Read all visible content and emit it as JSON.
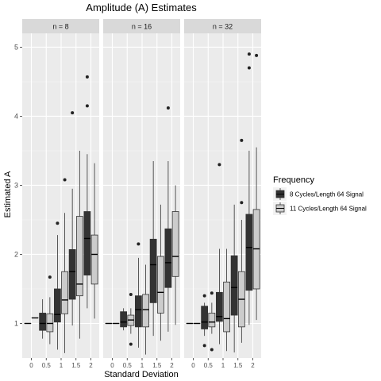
{
  "chart_data": {
    "type": "boxplot",
    "title": "Amplitude (A) Estimates",
    "xlabel": "Standard Deviation",
    "ylabel": "Estimated A",
    "ylim": [
      0.5,
      5.2
    ],
    "yticks": [
      "1",
      "2",
      "3",
      "4",
      "5"
    ],
    "categories": [
      "0",
      "0.5",
      "1",
      "1.5",
      "2"
    ],
    "legend": {
      "title": "Frequency",
      "position": "right",
      "items": [
        {
          "label": "8 Cycles/Length 64 Signal",
          "color": "#333333"
        },
        {
          "label": "11 Cycles/Length 64 Signal",
          "color": "#cccccc"
        }
      ]
    },
    "facets": [
      {
        "label": "n = 8",
        "boxes": [
          {
            "x": "0",
            "group": 0,
            "min": 1.0,
            "q1": 1.0,
            "median": 1.0,
            "q3": 1.0,
            "max": 1.0,
            "outliers": []
          },
          {
            "x": "0",
            "group": 1,
            "min": 1.08,
            "q1": 1.08,
            "median": 1.08,
            "q3": 1.08,
            "max": 1.08,
            "outliers": []
          },
          {
            "x": "0.5",
            "group": 0,
            "min": 0.78,
            "q1": 0.9,
            "median": 1.0,
            "q3": 1.15,
            "max": 1.35,
            "outliers": []
          },
          {
            "x": "0.5",
            "group": 1,
            "min": 0.7,
            "q1": 0.88,
            "median": 1.0,
            "q3": 1.14,
            "max": 1.38,
            "outliers": [
              1.67
            ]
          },
          {
            "x": "1",
            "group": 0,
            "min": 0.62,
            "q1": 1.02,
            "median": 1.13,
            "q3": 1.5,
            "max": 2.28,
            "outliers": [
              2.45
            ]
          },
          {
            "x": "1",
            "group": 1,
            "min": 0.57,
            "q1": 1.14,
            "median": 1.34,
            "q3": 1.75,
            "max": 2.6,
            "outliers": [
              3.08
            ]
          },
          {
            "x": "1.5",
            "group": 0,
            "min": 0.97,
            "q1": 1.35,
            "median": 1.75,
            "q3": 2.07,
            "max": 2.95,
            "outliers": [
              4.05
            ]
          },
          {
            "x": "1.5",
            "group": 1,
            "min": 0.78,
            "q1": 1.4,
            "median": 1.57,
            "q3": 2.55,
            "max": 3.5,
            "outliers": []
          },
          {
            "x": "2",
            "group": 0,
            "min": 1.22,
            "q1": 1.7,
            "median": 2.23,
            "q3": 2.62,
            "max": 3.45,
            "outliers": [
              4.15,
              4.57
            ]
          },
          {
            "x": "2",
            "group": 1,
            "min": 1.07,
            "q1": 1.57,
            "median": 2.0,
            "q3": 2.28,
            "max": 3.32,
            "outliers": []
          }
        ]
      },
      {
        "label": "n = 16",
        "boxes": [
          {
            "x": "0",
            "group": 0,
            "min": 1.0,
            "q1": 1.0,
            "median": 1.0,
            "q3": 1.0,
            "max": 1.0,
            "outliers": []
          },
          {
            "x": "0",
            "group": 1,
            "min": 1.0,
            "q1": 1.0,
            "median": 1.0,
            "q3": 1.0,
            "max": 1.0,
            "outliers": []
          },
          {
            "x": "0.5",
            "group": 0,
            "min": 0.9,
            "q1": 0.95,
            "median": 1.02,
            "q3": 1.17,
            "max": 1.22,
            "outliers": []
          },
          {
            "x": "0.5",
            "group": 1,
            "min": 0.85,
            "q1": 0.97,
            "median": 1.05,
            "q3": 1.12,
            "max": 1.22,
            "outliers": [
              1.42,
              0.7
            ]
          },
          {
            "x": "1",
            "group": 0,
            "min": 0.65,
            "q1": 0.95,
            "median": 1.2,
            "q3": 1.4,
            "max": 1.95,
            "outliers": [
              2.15
            ]
          },
          {
            "x": "1",
            "group": 1,
            "min": 0.55,
            "q1": 0.95,
            "median": 1.2,
            "q3": 1.42,
            "max": 1.85,
            "outliers": []
          },
          {
            "x": "1.5",
            "group": 0,
            "min": 0.82,
            "q1": 1.3,
            "median": 1.85,
            "q3": 2.22,
            "max": 3.35,
            "outliers": []
          },
          {
            "x": "1.5",
            "group": 1,
            "min": 0.75,
            "q1": 1.15,
            "median": 1.45,
            "q3": 1.97,
            "max": 2.72,
            "outliers": []
          },
          {
            "x": "2",
            "group": 0,
            "min": 0.88,
            "q1": 1.52,
            "median": 1.88,
            "q3": 2.37,
            "max": 3.35,
            "outliers": [
              4.12
            ]
          },
          {
            "x": "2",
            "group": 1,
            "min": 0.98,
            "q1": 1.68,
            "median": 1.97,
            "q3": 2.62,
            "max": 3.0,
            "outliers": []
          }
        ]
      },
      {
        "label": "n = 32",
        "boxes": [
          {
            "x": "0",
            "group": 0,
            "min": 1.0,
            "q1": 1.0,
            "median": 1.0,
            "q3": 1.0,
            "max": 1.0,
            "outliers": []
          },
          {
            "x": "0",
            "group": 1,
            "min": 1.0,
            "q1": 1.0,
            "median": 1.0,
            "q3": 1.0,
            "max": 1.0,
            "outliers": []
          },
          {
            "x": "0.5",
            "group": 0,
            "min": 0.82,
            "q1": 0.92,
            "median": 1.02,
            "q3": 1.25,
            "max": 1.3,
            "outliers": [
              1.4,
              0.68
            ]
          },
          {
            "x": "0.5",
            "group": 1,
            "min": 0.85,
            "q1": 0.95,
            "median": 1.02,
            "q3": 1.15,
            "max": 1.3,
            "outliers": [
              1.44,
              0.62
            ]
          },
          {
            "x": "1",
            "group": 0,
            "min": 0.7,
            "q1": 1.03,
            "median": 1.1,
            "q3": 1.45,
            "max": 2.08,
            "outliers": [
              3.3
            ]
          },
          {
            "x": "1",
            "group": 1,
            "min": 0.6,
            "q1": 0.88,
            "median": 1.07,
            "q3": 1.6,
            "max": 2.08,
            "outliers": []
          },
          {
            "x": "1.5",
            "group": 0,
            "min": 0.58,
            "q1": 1.12,
            "median": 1.52,
            "q3": 1.98,
            "max": 2.72,
            "outliers": []
          },
          {
            "x": "1.5",
            "group": 1,
            "min": 0.72,
            "q1": 0.95,
            "median": 1.35,
            "q3": 1.75,
            "max": 2.5,
            "outliers": [
              2.75,
              3.65
            ]
          },
          {
            "x": "2",
            "group": 0,
            "min": 0.98,
            "q1": 1.48,
            "median": 2.1,
            "q3": 2.58,
            "max": 3.5,
            "outliers": [
              4.7,
              4.9
            ]
          },
          {
            "x": "2",
            "group": 1,
            "min": 1.05,
            "q1": 1.5,
            "median": 2.08,
            "q3": 2.65,
            "max": 3.55,
            "outliers": [
              4.88
            ]
          }
        ]
      }
    ]
  }
}
